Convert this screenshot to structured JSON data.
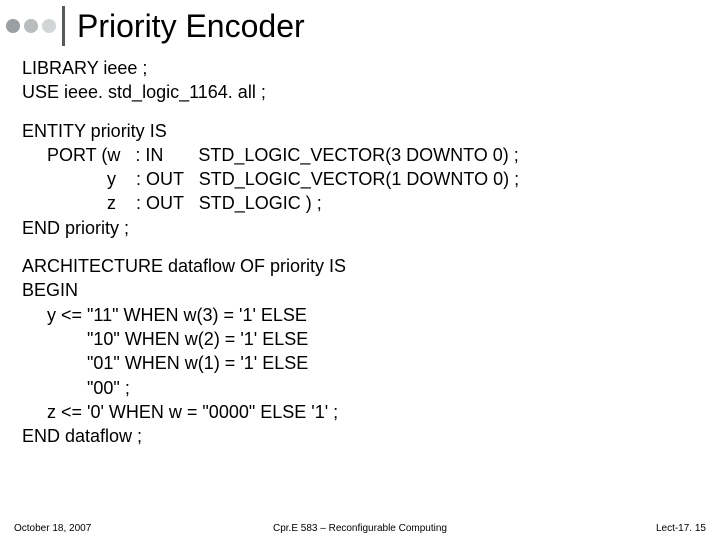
{
  "dots": {
    "color1": "#9aa0a2",
    "color2": "#b9bdbe",
    "color3": "#d2d5d6"
  },
  "title": "Priority Encoder",
  "lib": "LIBRARY ieee ;\nUSE ieee. std_logic_1164. all ;",
  "entity": "ENTITY priority IS\n     PORT (w   : IN       STD_LOGIC_VECTOR(3 DOWNTO 0) ;\n                 y    : OUT   STD_LOGIC_VECTOR(1 DOWNTO 0) ;\n                 z    : OUT   STD_LOGIC ) ;\nEND priority ;",
  "arch": "ARCHITECTURE dataflow OF priority IS\nBEGIN\n     y <= \"11\" WHEN w(3) = '1' ELSE\n             \"10\" WHEN w(2) = '1' ELSE\n             \"01\" WHEN w(1) = '1' ELSE\n             \"00\" ;\n     z <= '0' WHEN w = \"0000\" ELSE '1' ;\nEND dataflow ;",
  "footer": {
    "left": "October 18, 2007",
    "center": "Cpr.E 583 – Reconfigurable Computing",
    "right": "Lect-17. 15"
  }
}
